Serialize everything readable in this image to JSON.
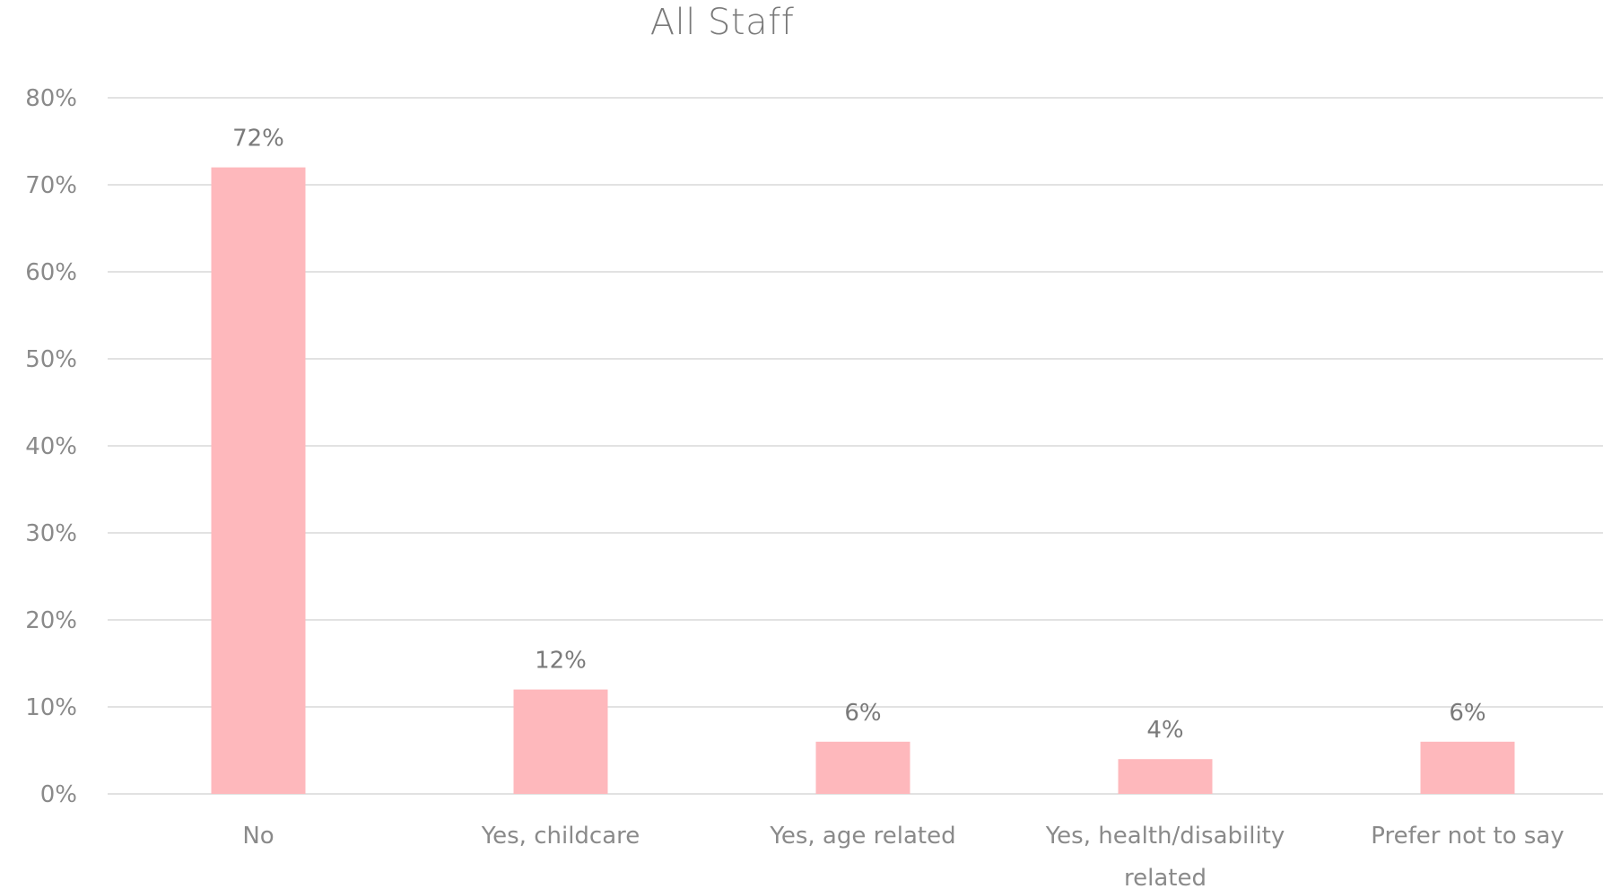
{
  "chart_data": {
    "type": "bar",
    "title": "All Staff",
    "xlabel": "",
    "ylabel": "",
    "categories": [
      [
        "No"
      ],
      [
        "Yes, childcare"
      ],
      [
        "Yes, age related"
      ],
      [
        "Yes, health/disability",
        "related"
      ],
      [
        "Prefer not to say"
      ]
    ],
    "values": [
      72,
      12,
      6,
      4,
      6
    ],
    "data_labels": [
      "72%",
      "12%",
      "6%",
      "4%",
      "6%"
    ],
    "ylim": [
      0,
      80
    ],
    "yticks": [
      0,
      10,
      20,
      30,
      40,
      50,
      60,
      70,
      80
    ],
    "ytick_labels": [
      "0%",
      "10%",
      "20%",
      "30%",
      "40%",
      "50%",
      "60%",
      "70%",
      "80%"
    ],
    "grid": true,
    "legend": "none",
    "colors": {
      "bar": "#feb8bc",
      "grid": "#d9d9d9",
      "text": "#7f7f7f"
    }
  }
}
